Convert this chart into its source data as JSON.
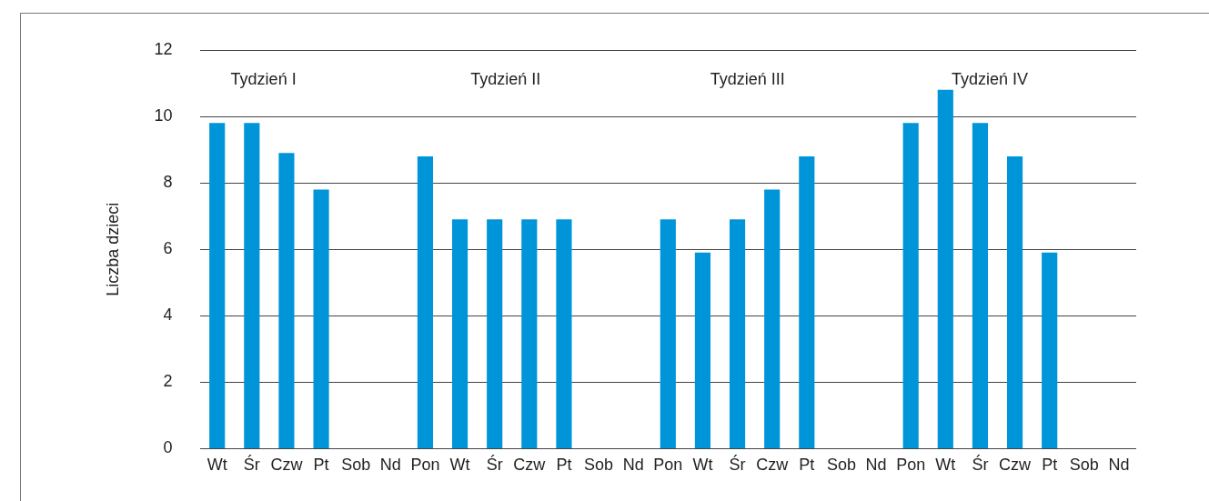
{
  "chart_data": {
    "type": "bar",
    "ylabel": "Liczba dzieci",
    "categories": [
      "Wt",
      "Śr",
      "Czw",
      "Pt",
      "Sob",
      "Nd",
      "Pon",
      "Wt",
      "Śr",
      "Czw",
      "Pt",
      "Sob",
      "Nd",
      "Pon",
      "Wt",
      "Śr",
      "Czw",
      "Pt",
      "Sob",
      "Nd",
      "Pon",
      "Wt",
      "Śr",
      "Czw",
      "Pt",
      "Sob",
      "Nd"
    ],
    "values": [
      9.8,
      9.8,
      8.9,
      7.8,
      null,
      null,
      8.8,
      6.9,
      6.9,
      6.9,
      6.9,
      null,
      null,
      6.9,
      5.9,
      6.9,
      7.8,
      8.8,
      null,
      null,
      9.8,
      10.8,
      9.8,
      8.8,
      5.9,
      null,
      null
    ],
    "color": "#0095d9",
    "ylim": [
      0,
      12
    ],
    "yticks": [
      0,
      2,
      4,
      6,
      8,
      10,
      12
    ],
    "grid": "y",
    "annotations": [
      "Tydzień I",
      "Tydzień II",
      "Tydzień III",
      "Tydzień IV"
    ]
  }
}
